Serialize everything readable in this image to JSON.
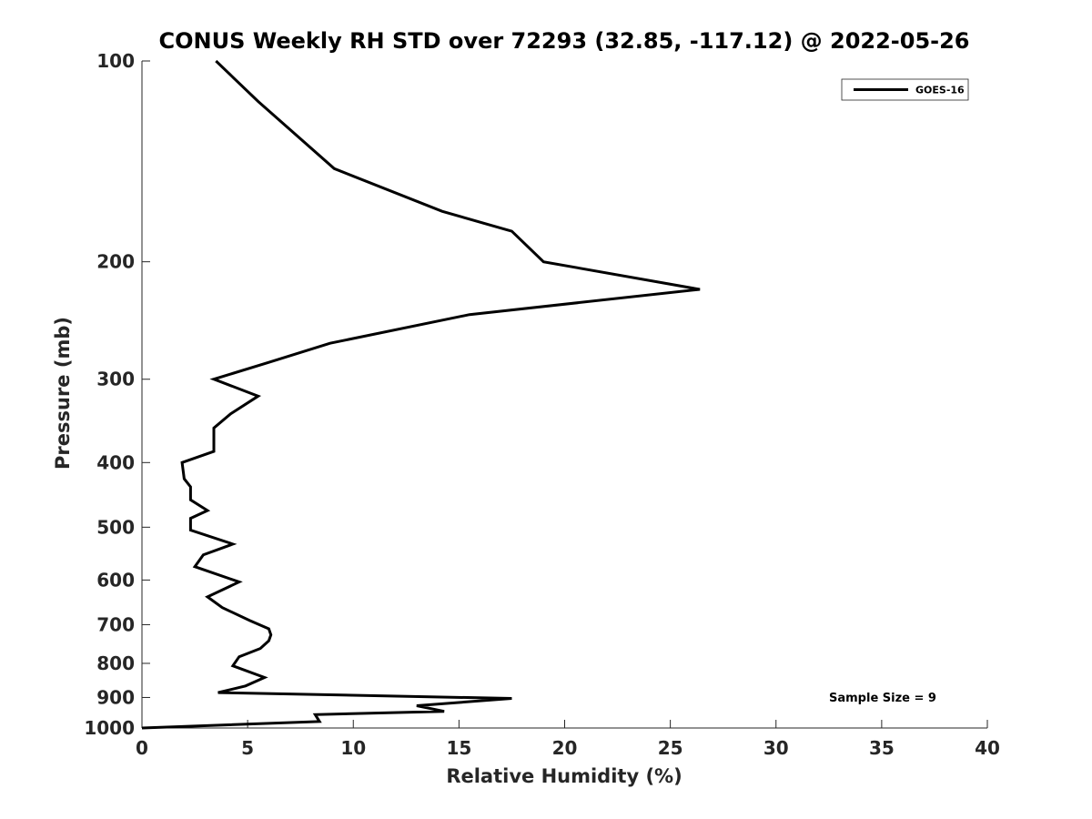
{
  "chart_data": {
    "type": "line",
    "title": "CONUS Weekly RH STD over 72293 (32.85, -117.12) @ 2022-05-26",
    "xlabel": "Relative Humidity (%)",
    "ylabel": "Pressure (mb)",
    "xlim": [
      0,
      40
    ],
    "ylim": [
      100,
      1000
    ],
    "y_scale": "log",
    "y_reversed": true,
    "x_ticks": [
      0,
      5,
      10,
      15,
      20,
      25,
      30,
      35,
      40
    ],
    "y_ticks": [
      100,
      200,
      300,
      400,
      500,
      600,
      700,
      800,
      900,
      1000
    ],
    "grid": false,
    "legend_position": "top-right",
    "line_color": "#000000",
    "series": [
      {
        "name": "GOES-16",
        "x": [
          3.5,
          5.5,
          9.1,
          14.2,
          17.5,
          19.0,
          26.4,
          15.5,
          8.9,
          6.0,
          3.4,
          5.5,
          4.2,
          3.4,
          3.4,
          1.9,
          2.0,
          2.3,
          2.3,
          3.1,
          2.3,
          2.3,
          4.3,
          2.9,
          2.5,
          4.6,
          3.1,
          3.8,
          5.1,
          6.0,
          6.1,
          6.0,
          5.6,
          4.6,
          4.3,
          5.8,
          4.9,
          3.6,
          17.5,
          13.0,
          14.3,
          8.2,
          8.4,
          0.0
        ],
        "y": [
          100,
          115,
          145,
          168,
          180,
          200,
          220,
          240,
          265,
          283,
          300,
          318,
          338,
          355,
          385,
          400,
          423,
          435,
          455,
          472,
          485,
          505,
          530,
          550,
          573,
          604,
          636,
          660,
          690,
          710,
          725,
          740,
          760,
          782,
          807,
          840,
          865,
          885,
          903,
          926,
          944,
          955,
          978,
          1000
        ]
      }
    ],
    "annotations": [
      "Sample Size = 9"
    ]
  }
}
